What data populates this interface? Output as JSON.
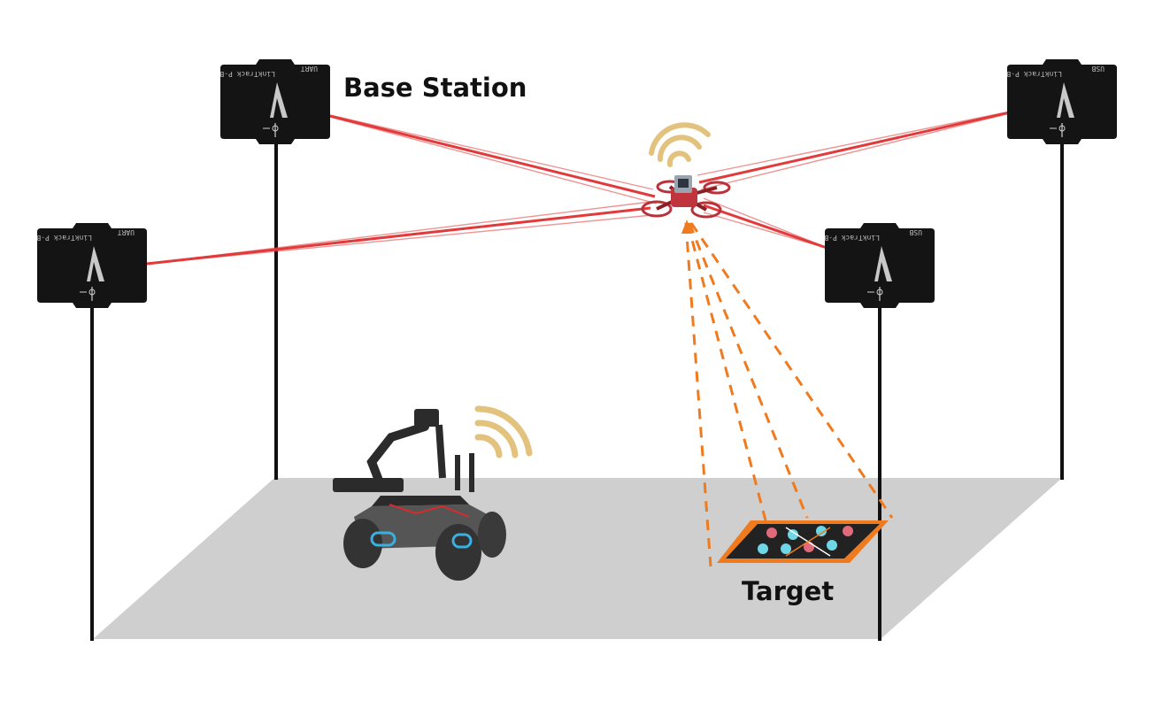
{
  "labels": {
    "base_station": "Base Station",
    "target": "Target"
  },
  "base_station_print": {
    "model": "LinkTrack P-B",
    "port_left": "UART",
    "port_right": "USB"
  },
  "colors": {
    "floor": "#cfcfcf",
    "pole": "#111111",
    "station_body": "#141414",
    "laser": "#e23a3a",
    "dashed_beam": "#f07a1e",
    "target_frame": "#f07a1e",
    "wifi": "#e2c27c",
    "drone": "#b8323a",
    "robot": "#2b2b2b",
    "robot_light": "#3ab0e0"
  },
  "icons": {
    "wireless_drone": "wifi-signal-icon",
    "wireless_robot": "wifi-signal-icon"
  }
}
